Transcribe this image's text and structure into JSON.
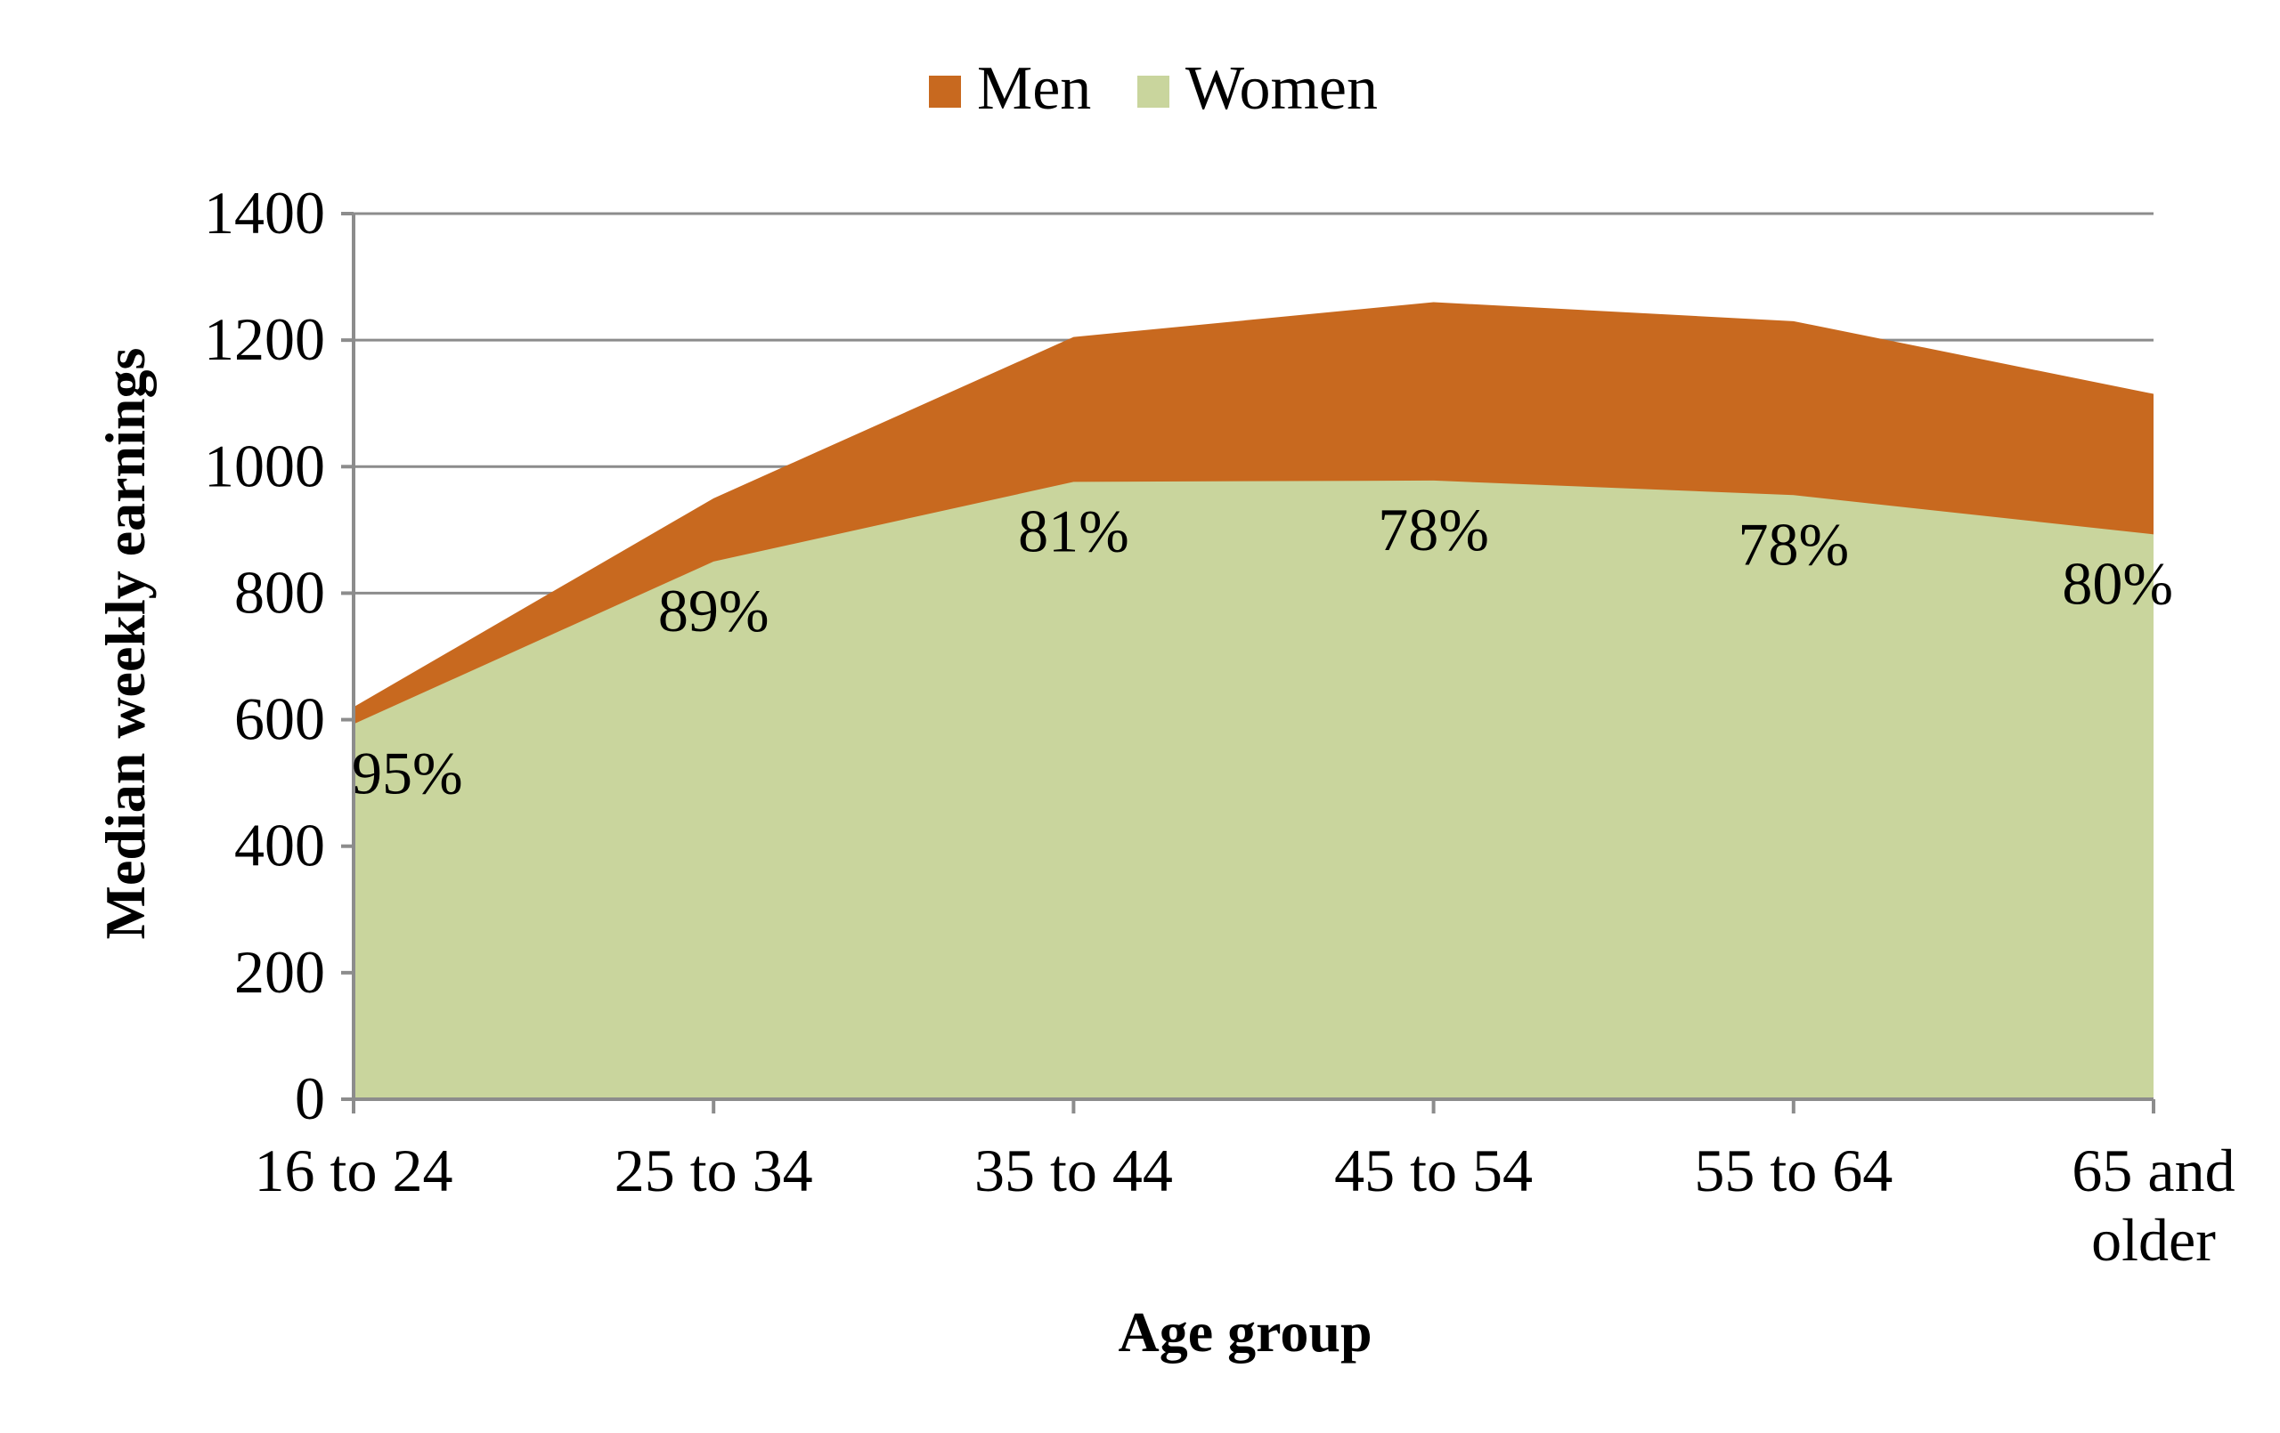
{
  "chart_data": {
    "type": "area",
    "title": "",
    "xlabel": "Age group",
    "ylabel": "Median weekly earnings",
    "categories": [
      [
        "16 to 24"
      ],
      [
        "25 to 34"
      ],
      [
        "35 to 44"
      ],
      [
        "45 to 54"
      ],
      [
        "55 to 64"
      ],
      [
        "65 and",
        "older"
      ]
    ],
    "ylim": [
      0,
      1400
    ],
    "yticks": [
      0,
      200,
      400,
      600,
      800,
      1000,
      1200,
      1400
    ],
    "grid": true,
    "legend_position": "top",
    "series": [
      {
        "name": "Men",
        "color": "#c8691f",
        "values": [
          620,
          950,
          1205,
          1260,
          1230,
          1115
        ]
      },
      {
        "name": "Women",
        "color": "#c9d59d",
        "values": [
          593,
          850,
          976,
          978,
          955,
          893
        ]
      }
    ],
    "annotations": [
      "95%",
      "89%",
      "81%",
      "78%",
      "78%",
      "80%"
    ]
  }
}
